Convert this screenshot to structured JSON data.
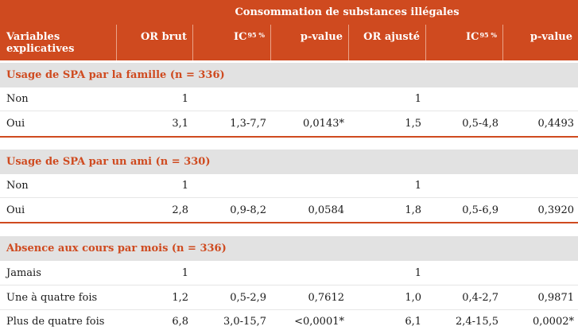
{
  "table": {
    "group_title": "Consommation de substances illégales",
    "columns": {
      "variables": "Variables explicatives",
      "or_brut": "OR brut",
      "ic1": "IC",
      "ic1_sub": "95 %",
      "pvalue1": "p-value",
      "or_ajuste": "OR ajusté",
      "ic2": "IC",
      "ic2_sub": "95 %",
      "pvalue2": "p-value"
    },
    "sections": [
      {
        "title": "Usage de SPA par la famille (n = 336)",
        "rows": [
          {
            "label": "Non",
            "or_brut": "1",
            "ic1": "",
            "p1": "",
            "or_aj": "1",
            "ic2": "",
            "p2": ""
          },
          {
            "label": "Oui",
            "or_brut": "3,1",
            "ic1": "1,3-7,7",
            "p1": "0,0143*",
            "or_aj": "1,5",
            "ic2": "0,5-4,8",
            "p2": "0,4493"
          }
        ]
      },
      {
        "title": "Usage de SPA par un ami (n = 330)",
        "rows": [
          {
            "label": "Non",
            "or_brut": "1",
            "ic1": "",
            "p1": "",
            "or_aj": "1",
            "ic2": "",
            "p2": ""
          },
          {
            "label": "Oui",
            "or_brut": "2,8",
            "ic1": "0,9-8,2",
            "p1": "0,0584",
            "or_aj": "1,8",
            "ic2": "0,5-6,9",
            "p2": "0,3920"
          }
        ]
      },
      {
        "title": "Absence aux cours par mois (n = 336)",
        "rows": [
          {
            "label": "Jamais",
            "or_brut": "1",
            "ic1": "",
            "p1": "",
            "or_aj": "1",
            "ic2": "",
            "p2": ""
          },
          {
            "label": "Une à quatre fois",
            "or_brut": "1,2",
            "ic1": "0,5-2,9",
            "p1": "0,7612",
            "or_aj": "1,0",
            "ic2": "0,4-2,7",
            "p2": "0,9871"
          },
          {
            "label": "Plus de quatre fois",
            "or_brut": "6,8",
            "ic1": "3,0-15,7",
            "p1": "<0,0001*",
            "or_aj": "6,1",
            "ic2": "2,4-15,5",
            "p2": "0,0002*"
          }
        ]
      }
    ]
  }
}
